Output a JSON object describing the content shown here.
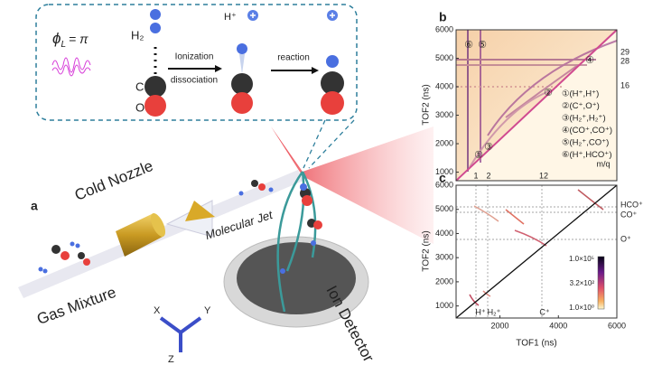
{
  "figure": {
    "panel_labels": {
      "a": "a",
      "b": "b",
      "c": "c"
    },
    "inset": {
      "phase_symbol": "ϕ",
      "phase_subscript": "L",
      "phase_value": "= π",
      "h2": "H₂",
      "carbon": "C",
      "oxygen": "O",
      "proton": "H⁺",
      "step1_top": "Ionization",
      "step1_bottom": "dissociation",
      "step2": "reaction"
    },
    "scene": {
      "nozzle": "Cold Nozzle",
      "jet": "Molecular Jet",
      "gas": "Gas Mixture",
      "detector": "Ion Detector",
      "axes": [
        "X",
        "Y",
        "Z"
      ]
    },
    "plot_b": {
      "ylabel": "TOF2 (ns)",
      "xlim": [
        700,
        6000
      ],
      "ylim": [
        700,
        6000
      ],
      "yticks": [
        1000,
        2000,
        3000,
        4000,
        5000,
        6000
      ],
      "right_labels": [
        "29",
        "28",
        "16"
      ],
      "bottom_labels": [
        "1",
        "2",
        "12"
      ],
      "mq": "m/q",
      "markers": [
        "⑥",
        "⑤",
        "④",
        "③",
        "②",
        "①"
      ],
      "legend": [
        "①(H⁺,H⁺)",
        "②(C⁺,O⁺)",
        "③(H₂⁺,H₂⁺)",
        "④(CO⁺,CO⁺)",
        "⑤(H₂⁺,CO⁺)",
        "⑥(H⁺,HCO⁺)"
      ]
    },
    "plot_c": {
      "xlabel": "TOF1 (ns)",
      "ylabel": "TOF2 (ns)",
      "xlim": [
        500,
        6000
      ],
      "ylim": [
        500,
        6000
      ],
      "xticks": [
        2000,
        4000,
        6000
      ],
      "yticks": [
        1000,
        2000,
        3000,
        4000,
        5000,
        6000
      ],
      "right_labels": [
        "HCO⁺",
        "CO⁺",
        "O⁺"
      ],
      "bottom_labels": [
        "H⁺",
        "H₂⁺",
        "C⁺"
      ],
      "colorbar_labels": [
        "1.0×10⁵",
        "3.2×10²",
        "1.0×10⁰"
      ]
    }
  }
}
